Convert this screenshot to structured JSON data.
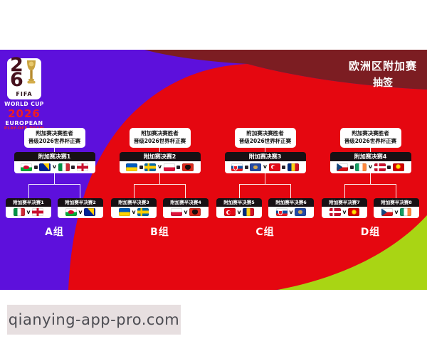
{
  "colors": {
    "purple": "#5d10dc",
    "red": "#e50710",
    "maroon": "#7c1d22",
    "green": "#a9d514",
    "black_bar": "#171014",
    "logo_red": "#ee1c24"
  },
  "logo": {
    "two": "2",
    "six": "6",
    "fifa": "FIFA",
    "world_cup": "WORLD CUP",
    "year": "2026",
    "european": "EUROPEAN",
    "playoff_draw": "PLAY-OFF DRAW",
    "trophy_icon": "world-cup-trophy"
  },
  "header": {
    "title_line1": "欧洲区附加赛",
    "title_line2": "抽签"
  },
  "bracket": {
    "winner_box_line1": "附加赛决赛胜者",
    "winner_box_line2": "晋级2026世界杯正赛",
    "vs": "v",
    "groups": [
      {
        "label": "A组",
        "final_label": "附加赛决赛1",
        "final_flags": [
          [
            "wales",
            "bosnia"
          ],
          [
            "italy",
            "northern-ireland"
          ]
        ],
        "semis": [
          {
            "label": "附加赛半决赛1",
            "flags": [
              "italy",
              "northern-ireland"
            ]
          },
          {
            "label": "附加赛半决赛2",
            "flags": [
              "wales",
              "bosnia"
            ]
          }
        ]
      },
      {
        "label": "B组",
        "final_label": "附加赛决赛2",
        "final_flags": [
          [
            "ukraine",
            "sweden"
          ],
          [
            "poland",
            "albania"
          ]
        ],
        "semis": [
          {
            "label": "附加赛半决赛3",
            "flags": [
              "ukraine",
              "sweden"
            ]
          },
          {
            "label": "附加赛半决赛4",
            "flags": [
              "poland",
              "albania"
            ]
          }
        ]
      },
      {
        "label": "C组",
        "final_label": "附加赛决赛3",
        "final_flags": [
          [
            "slovakia",
            "kosovo"
          ],
          [
            "turkey",
            "romania"
          ]
        ],
        "semis": [
          {
            "label": "附加赛半决赛5",
            "flags": [
              "turkey",
              "romania"
            ]
          },
          {
            "label": "附加赛半决赛6",
            "flags": [
              "slovakia",
              "kosovo"
            ]
          }
        ]
      },
      {
        "label": "D组",
        "final_label": "附加赛决赛4",
        "final_flags": [
          [
            "czechia",
            "ireland"
          ],
          [
            "denmark",
            "north-macedonia"
          ]
        ],
        "semis": [
          {
            "label": "附加赛半决赛7",
            "flags": [
              "denmark",
              "north-macedonia"
            ]
          },
          {
            "label": "附加赛半决赛8",
            "flags": [
              "czechia",
              "ireland"
            ]
          }
        ]
      }
    ]
  },
  "watermark": "qianying-app-pro.com"
}
